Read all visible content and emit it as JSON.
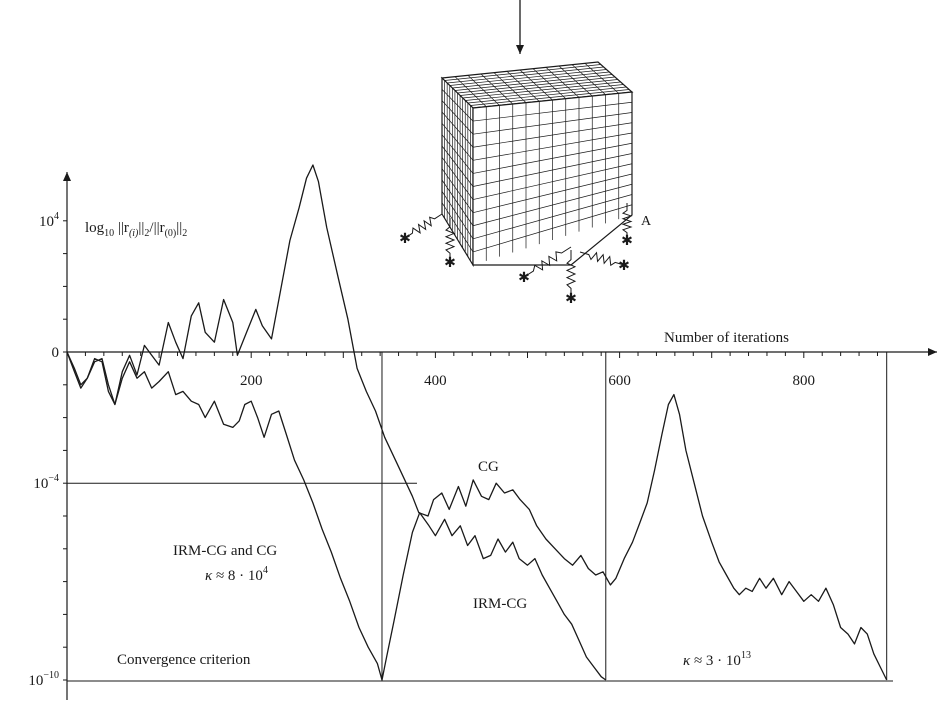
{
  "chart_data": {
    "type": "line",
    "y_axis_label": "log10 ||r(i)||2/||r(0)||2",
    "x_axis_label": "Number of iterations",
    "y_scale": "log10",
    "x_range": [
      0,
      900
    ],
    "y_range_log10": [
      -10,
      4
    ],
    "x_ticks": [
      {
        "value": 200,
        "label": "200"
      },
      {
        "value": 400,
        "label": "400"
      },
      {
        "value": 600,
        "label": "600"
      },
      {
        "value": 800,
        "label": "800"
      }
    ],
    "y_ticks": [
      {
        "value": 4,
        "label": "10",
        "exp": "4"
      },
      {
        "value": 0,
        "label": "0",
        "exp": ""
      },
      {
        "value": -4,
        "label": "10",
        "exp": "−4"
      },
      {
        "value": -10,
        "label": "10",
        "exp": "−10"
      }
    ],
    "convergence_criterion": -10,
    "series": [
      {
        "name": "CG",
        "points": [
          [
            0,
            0
          ],
          [
            8,
            -0.6
          ],
          [
            15,
            -1.1
          ],
          [
            22,
            -0.8
          ],
          [
            30,
            -0.3
          ],
          [
            38,
            -0.2
          ],
          [
            45,
            -1.0
          ],
          [
            52,
            -1.6
          ],
          [
            60,
            -0.6
          ],
          [
            68,
            -0.1
          ],
          [
            76,
            -0.7
          ],
          [
            84,
            0.2
          ],
          [
            92,
            -0.1
          ],
          [
            100,
            -0.4
          ],
          [
            110,
            0.9
          ],
          [
            118,
            0.3
          ],
          [
            126,
            -0.2
          ],
          [
            135,
            1.1
          ],
          [
            143,
            1.5
          ],
          [
            150,
            0.6
          ],
          [
            160,
            0.3
          ],
          [
            170,
            1.6
          ],
          [
            180,
            0.9
          ],
          [
            185,
            -0.1
          ],
          [
            195,
            0.6
          ],
          [
            205,
            1.3
          ],
          [
            212,
            0.8
          ],
          [
            222,
            0.4
          ],
          [
            232,
            1.9
          ],
          [
            242,
            3.4
          ],
          [
            252,
            4.4
          ],
          [
            260,
            5.3
          ],
          [
            267,
            5.7
          ],
          [
            273,
            5.2
          ],
          [
            282,
            3.8
          ],
          [
            295,
            2.2
          ],
          [
            305,
            1.0
          ],
          [
            315,
            -0.5
          ],
          [
            325,
            -1.2
          ],
          [
            335,
            -1.8
          ],
          [
            345,
            -2.6
          ],
          [
            360,
            -3.5
          ],
          [
            375,
            -4.4
          ],
          [
            382,
            -4.9
          ],
          [
            392,
            -5.0
          ],
          [
            398,
            -4.5
          ],
          [
            407,
            -4.3
          ],
          [
            415,
            -4.8
          ],
          [
            425,
            -4.1
          ],
          [
            433,
            -4.7
          ],
          [
            441,
            -3.9
          ],
          [
            450,
            -4.4
          ],
          [
            458,
            -4.5
          ],
          [
            466,
            -4.0
          ],
          [
            475,
            -4.3
          ],
          [
            484,
            -4.2
          ],
          [
            492,
            -4.5
          ],
          [
            502,
            -4.8
          ],
          [
            510,
            -5.3
          ],
          [
            520,
            -5.7
          ],
          [
            530,
            -6.0
          ],
          [
            540,
            -6.3
          ],
          [
            549,
            -6.5
          ],
          [
            558,
            -6.2
          ],
          [
            566,
            -6.6
          ],
          [
            574,
            -6.8
          ],
          [
            582,
            -6.7
          ],
          [
            590,
            -7.1
          ],
          [
            596,
            -6.9
          ],
          [
            605,
            -6.3
          ],
          [
            614,
            -5.8
          ],
          [
            622,
            -5.2
          ],
          [
            630,
            -4.6
          ],
          [
            638,
            -3.6
          ],
          [
            646,
            -2.5
          ],
          [
            653,
            -1.6
          ],
          [
            659,
            -1.3
          ],
          [
            665,
            -1.9
          ],
          [
            672,
            -3.0
          ],
          [
            681,
            -4.0
          ],
          [
            690,
            -5.0
          ],
          [
            700,
            -5.8
          ],
          [
            708,
            -6.4
          ],
          [
            716,
            -6.8
          ],
          [
            724,
            -7.2
          ],
          [
            730,
            -7.4
          ],
          [
            737,
            -7.2
          ],
          [
            744,
            -7.3
          ],
          [
            752,
            -6.9
          ],
          [
            759,
            -7.2
          ],
          [
            767,
            -6.9
          ],
          [
            776,
            -7.4
          ],
          [
            784,
            -7.0
          ],
          [
            792,
            -7.3
          ],
          [
            800,
            -7.6
          ],
          [
            808,
            -7.4
          ],
          [
            816,
            -7.6
          ],
          [
            824,
            -7.2
          ],
          [
            832,
            -7.7
          ],
          [
            840,
            -8.4
          ],
          [
            848,
            -8.6
          ],
          [
            855,
            -8.9
          ],
          [
            862,
            -8.4
          ],
          [
            869,
            -8.6
          ],
          [
            876,
            -9.2
          ],
          [
            883,
            -9.6
          ],
          [
            890,
            -10.0
          ]
        ]
      },
      {
        "name": "IRM-CG",
        "points": [
          [
            0,
            0
          ],
          [
            8,
            -0.5
          ],
          [
            15,
            -1.0
          ],
          [
            22,
            -0.8
          ],
          [
            30,
            -0.2
          ],
          [
            38,
            -0.3
          ],
          [
            45,
            -1.2
          ],
          [
            52,
            -1.6
          ],
          [
            60,
            -0.8
          ],
          [
            68,
            -0.3
          ],
          [
            76,
            -0.8
          ],
          [
            84,
            -0.6
          ],
          [
            92,
            -1.1
          ],
          [
            100,
            -0.9
          ],
          [
            110,
            -0.6
          ],
          [
            118,
            -1.3
          ],
          [
            126,
            -1.2
          ],
          [
            135,
            -1.5
          ],
          [
            143,
            -1.6
          ],
          [
            150,
            -2.0
          ],
          [
            160,
            -1.5
          ],
          [
            170,
            -2.2
          ],
          [
            180,
            -2.3
          ],
          [
            187,
            -2.1
          ],
          [
            193,
            -1.6
          ],
          [
            200,
            -1.5
          ],
          [
            207,
            -2.0
          ],
          [
            214,
            -2.6
          ],
          [
            222,
            -1.9
          ],
          [
            230,
            -1.8
          ],
          [
            238,
            -2.5
          ],
          [
            247,
            -3.3
          ],
          [
            257,
            -3.9
          ],
          [
            267,
            -4.6
          ],
          [
            277,
            -5.4
          ],
          [
            287,
            -6.1
          ],
          [
            297,
            -6.9
          ],
          [
            307,
            -7.6
          ],
          [
            317,
            -8.4
          ],
          [
            327,
            -9.0
          ],
          [
            337,
            -9.5
          ],
          [
            342,
            -10.0
          ],
          [
            347,
            -9.3
          ],
          [
            355,
            -8.2
          ],
          [
            365,
            -6.8
          ],
          [
            375,
            -5.5
          ],
          [
            383,
            -4.9
          ],
          [
            393,
            -5.3
          ],
          [
            400,
            -5.6
          ],
          [
            410,
            -5.1
          ],
          [
            418,
            -5.6
          ],
          [
            427,
            -5.3
          ],
          [
            435,
            -5.9
          ],
          [
            443,
            -5.6
          ],
          [
            452,
            -6.3
          ],
          [
            460,
            -6.2
          ],
          [
            468,
            -5.7
          ],
          [
            476,
            -6.1
          ],
          [
            484,
            -5.8
          ],
          [
            491,
            -6.3
          ],
          [
            500,
            -6.5
          ],
          [
            508,
            -6.3
          ],
          [
            516,
            -6.8
          ],
          [
            524,
            -7.2
          ],
          [
            532,
            -7.6
          ],
          [
            540,
            -8.0
          ],
          [
            548,
            -8.3
          ],
          [
            556,
            -8.8
          ],
          [
            564,
            -9.3
          ],
          [
            572,
            -9.6
          ],
          [
            580,
            -9.9
          ],
          [
            585,
            -10.0
          ]
        ]
      }
    ],
    "iteration_markers": [
      342,
      585,
      890
    ]
  },
  "annotations": {
    "cg": "CG",
    "irm_cg": "IRM-CG",
    "both_title": "IRM-CG and CG",
    "kappa_symbol": "κ",
    "kappa_1": "≈ 8 · 10",
    "kappa_1_exp": "4",
    "kappa_2": "≈ 3 · 10",
    "kappa_2_exp": "13",
    "convergence": "Convergence criterion",
    "spring_label": "A"
  },
  "colors": {
    "line": "#1a1a1a",
    "background": "#ffffff"
  }
}
